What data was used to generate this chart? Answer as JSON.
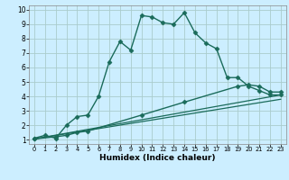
{
  "xlabel": "Humidex (Indice chaleur)",
  "bg_color": "#cceeff",
  "grid_color": "#aacccc",
  "line_color": "#1a6b5a",
  "xlim": [
    -0.5,
    23.5
  ],
  "ylim": [
    0.7,
    10.3
  ],
  "xticks": [
    0,
    1,
    2,
    3,
    4,
    5,
    6,
    7,
    8,
    9,
    10,
    11,
    12,
    13,
    14,
    15,
    16,
    17,
    18,
    19,
    20,
    21,
    22,
    23
  ],
  "yticks": [
    1,
    2,
    3,
    4,
    5,
    6,
    7,
    8,
    9,
    10
  ],
  "series": [
    {
      "x": [
        0,
        1,
        2,
        3,
        4,
        5,
        6,
        7,
        8,
        9,
        10,
        11,
        12,
        13,
        14,
        15,
        16,
        17,
        18,
        19,
        20,
        21,
        22,
        23
      ],
      "y": [
        1.1,
        1.3,
        1.1,
        2.0,
        2.6,
        2.7,
        4.0,
        6.4,
        7.8,
        7.2,
        9.6,
        9.5,
        9.1,
        9.0,
        9.8,
        8.4,
        7.7,
        7.3,
        5.3,
        5.3,
        4.7,
        4.4,
        4.1,
        4.1
      ],
      "marker": "D",
      "markersize": 2.5,
      "linewidth": 1.0
    },
    {
      "x": [
        0,
        2,
        3,
        4,
        5,
        10,
        14,
        19,
        20,
        21,
        22,
        23
      ],
      "y": [
        1.05,
        1.2,
        1.3,
        1.5,
        1.6,
        2.7,
        3.6,
        4.7,
        4.8,
        4.7,
        4.3,
        4.3
      ],
      "marker": "D",
      "markersize": 2.5,
      "linewidth": 1.0
    },
    {
      "x": [
        0,
        23
      ],
      "y": [
        1.05,
        4.1
      ],
      "marker": null,
      "linewidth": 0.9
    },
    {
      "x": [
        0,
        23
      ],
      "y": [
        1.05,
        3.8
      ],
      "marker": null,
      "linewidth": 0.9
    }
  ]
}
